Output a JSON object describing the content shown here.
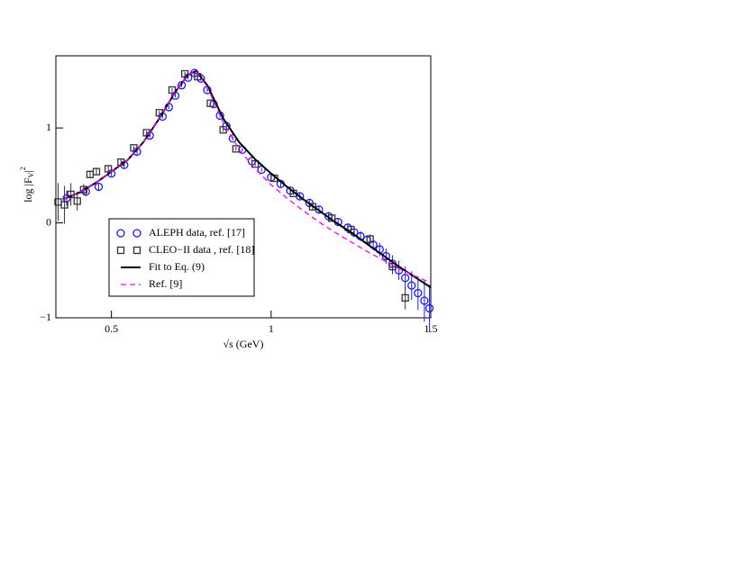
{
  "chart_data": {
    "type": "scatter",
    "x_label": "√s  (GeV)",
    "y_label": {
      "text": "log |F",
      "sub": "V",
      "close": "|",
      "sup": "2"
    },
    "xlim": [
      0.326,
      1.5
    ],
    "ylim": [
      -1,
      1.76
    ],
    "xticks": [
      0.5,
      1,
      1.5
    ],
    "yticks": [
      {
        "value": -1,
        "label": "−1"
      },
      0,
      1
    ],
    "legend": "lower-left",
    "series": [
      {
        "name": "ALEPH data, ref. [17]",
        "color": "#1a1aff",
        "marker": "circle",
        "x": [
          0.36,
          0.42,
          0.46,
          0.5,
          0.54,
          0.58,
          0.62,
          0.66,
          0.68,
          0.7,
          0.72,
          0.74,
          0.76,
          0.78,
          0.8,
          0.82,
          0.84,
          0.86,
          0.88,
          0.91,
          0.94,
          0.97,
          1.0,
          1.03,
          1.06,
          1.09,
          1.12,
          1.15,
          1.18,
          1.21,
          1.24,
          1.26,
          1.28,
          1.3,
          1.32,
          1.34,
          1.36,
          1.38,
          1.4,
          1.42,
          1.44,
          1.46,
          1.48,
          1.496
        ],
        "values": [
          0.26,
          0.33,
          0.38,
          0.52,
          0.61,
          0.75,
          0.92,
          1.12,
          1.22,
          1.34,
          1.45,
          1.53,
          1.58,
          1.52,
          1.4,
          1.25,
          1.13,
          1.02,
          0.89,
          0.77,
          0.65,
          0.56,
          0.48,
          0.41,
          0.34,
          0.28,
          0.21,
          0.14,
          0.07,
          0.01,
          -0.05,
          -0.1,
          -0.14,
          -0.18,
          -0.23,
          -0.28,
          -0.35,
          -0.43,
          -0.5,
          -0.58,
          -0.66,
          -0.74,
          -0.82,
          -0.9
        ],
        "errors": [
          0.08,
          0.05,
          0.04,
          0.03,
          0.03,
          0.03,
          0.02,
          0.02,
          0.02,
          0.02,
          0.02,
          0.02,
          0.02,
          0.02,
          0.02,
          0.02,
          0.02,
          0.02,
          0.02,
          0.02,
          0.02,
          0.02,
          0.03,
          0.03,
          0.03,
          0.03,
          0.03,
          0.03,
          0.04,
          0.04,
          0.04,
          0.05,
          0.05,
          0.05,
          0.06,
          0.07,
          0.08,
          0.09,
          0.1,
          0.12,
          0.15,
          0.18,
          0.22,
          0.25
        ]
      },
      {
        "name": "CLEO−II data , ref. [18]",
        "color": "#333333",
        "marker": "square",
        "x": [
          0.333,
          0.353,
          0.373,
          0.393,
          0.413,
          0.433,
          0.453,
          0.49,
          0.53,
          0.57,
          0.61,
          0.65,
          0.69,
          0.73,
          0.77,
          0.81,
          0.85,
          0.89,
          0.95,
          1.01,
          1.07,
          1.13,
          1.19,
          1.25,
          1.31,
          1.38,
          1.42
        ],
        "values": [
          0.22,
          0.19,
          0.3,
          0.23,
          0.35,
          0.51,
          0.54,
          0.57,
          0.64,
          0.79,
          0.95,
          1.16,
          1.4,
          1.57,
          1.54,
          1.26,
          0.98,
          0.78,
          0.62,
          0.47,
          0.31,
          0.17,
          0.05,
          -0.07,
          -0.17,
          -0.46,
          -0.79
        ],
        "errors": [
          0.2,
          0.2,
          0.12,
          0.1,
          0.06,
          0.04,
          0.03,
          0.03,
          0.03,
          0.02,
          0.02,
          0.02,
          0.02,
          0.02,
          0.02,
          0.02,
          0.02,
          0.02,
          0.02,
          0.02,
          0.02,
          0.03,
          0.03,
          0.04,
          0.05,
          0.08,
          0.12
        ]
      },
      {
        "name": "Fit to Eq. (9)",
        "color": "#000000",
        "marker": "line",
        "x": [
          0.35,
          0.4,
          0.45,
          0.5,
          0.55,
          0.6,
          0.65,
          0.7,
          0.74,
          0.765,
          0.8,
          0.85,
          0.9,
          0.95,
          1.0,
          1.05,
          1.1,
          1.15,
          1.2,
          1.25,
          1.3,
          1.35,
          1.4,
          1.45,
          1.5
        ],
        "values": [
          0.25,
          0.32,
          0.42,
          0.54,
          0.66,
          0.85,
          1.1,
          1.38,
          1.56,
          1.6,
          1.45,
          1.1,
          0.85,
          0.67,
          0.52,
          0.38,
          0.25,
          0.13,
          0.01,
          -0.1,
          -0.22,
          -0.34,
          -0.46,
          -0.57,
          -0.68
        ]
      },
      {
        "name": "Ref. [9]",
        "color": "#ff00ff",
        "marker": "dashed",
        "x": [
          0.35,
          0.4,
          0.45,
          0.5,
          0.55,
          0.6,
          0.65,
          0.7,
          0.74,
          0.765,
          0.8,
          0.85,
          0.9,
          0.95,
          1.0,
          1.05,
          1.1,
          1.15,
          1.2,
          1.25,
          1.3,
          1.35,
          1.4,
          1.45,
          1.5
        ],
        "values": [
          0.25,
          0.32,
          0.42,
          0.54,
          0.66,
          0.85,
          1.1,
          1.38,
          1.56,
          1.6,
          1.43,
          1.06,
          0.77,
          0.57,
          0.4,
          0.26,
          0.13,
          0.01,
          -0.1,
          -0.2,
          -0.3,
          -0.39,
          -0.48,
          -0.56,
          -0.63
        ]
      }
    ]
  }
}
